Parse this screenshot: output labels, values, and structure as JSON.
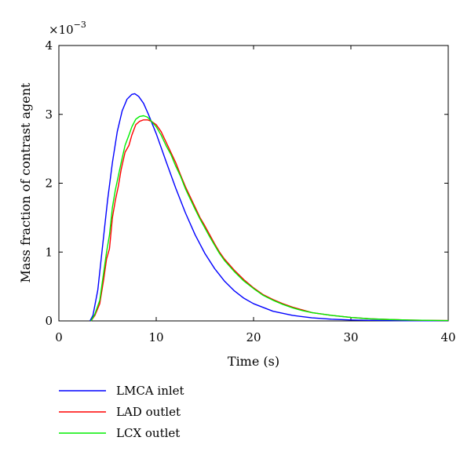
{
  "chart_data": {
    "type": "line",
    "xlabel": "Time (s)",
    "ylabel": "Mass fraction of contrast agent",
    "exponent_label": "×10",
    "exponent_power": "−3",
    "xlim": [
      0,
      40
    ],
    "ylim": [
      0,
      4
    ],
    "x_ticks": [
      0,
      10,
      20,
      30,
      40
    ],
    "y_ticks": [
      0,
      1,
      2,
      3,
      4
    ],
    "grid": false,
    "legend_position": "below",
    "series": [
      {
        "name": "LMCA inlet",
        "color": "#0000ff",
        "x": [
          3.2,
          3.5,
          4.0,
          4.5,
          5.0,
          5.5,
          6.0,
          6.5,
          7.0,
          7.5,
          7.8,
          8.2,
          8.7,
          9.2,
          10,
          11,
          12,
          13,
          14,
          15,
          16,
          17,
          18,
          19,
          20,
          22,
          24,
          26,
          28,
          30,
          32,
          34,
          36,
          38,
          40
        ],
        "y": [
          0.0,
          0.08,
          0.45,
          1.1,
          1.75,
          2.3,
          2.75,
          3.05,
          3.22,
          3.29,
          3.3,
          3.26,
          3.16,
          3.0,
          2.72,
          2.32,
          1.93,
          1.57,
          1.25,
          0.98,
          0.76,
          0.58,
          0.44,
          0.33,
          0.25,
          0.14,
          0.08,
          0.045,
          0.025,
          0.014,
          0.008,
          0.005,
          0.003,
          0.002,
          0.001
        ]
      },
      {
        "name": "LAD outlet",
        "color": "#ff0000",
        "x": [
          3.3,
          3.7,
          4.2,
          4.6,
          4.9,
          5.2,
          5.5,
          5.8,
          6.1,
          6.4,
          6.8,
          7.2,
          7.5,
          7.9,
          8.3,
          8.7,
          9.1,
          9.5,
          10,
          10.5,
          11,
          11.5,
          12,
          12.5,
          13,
          13.5,
          14,
          14.5,
          15,
          15.5,
          16,
          16.5,
          17,
          18,
          19,
          20,
          21,
          22,
          23,
          24,
          25,
          26,
          28,
          30,
          32,
          34,
          36,
          38,
          40
        ],
        "y": [
          0.0,
          0.08,
          0.25,
          0.6,
          0.9,
          1.05,
          1.5,
          1.75,
          1.95,
          2.2,
          2.45,
          2.55,
          2.7,
          2.85,
          2.9,
          2.92,
          2.92,
          2.9,
          2.85,
          2.75,
          2.6,
          2.45,
          2.3,
          2.12,
          1.95,
          1.8,
          1.65,
          1.5,
          1.38,
          1.25,
          1.12,
          1.0,
          0.9,
          0.74,
          0.6,
          0.48,
          0.38,
          0.31,
          0.25,
          0.2,
          0.16,
          0.12,
          0.08,
          0.05,
          0.03,
          0.02,
          0.012,
          0.008,
          0.005
        ]
      },
      {
        "name": "LCX outlet",
        "color": "#00ee00",
        "x": [
          3.3,
          3.7,
          4.2,
          4.6,
          4.9,
          5.2,
          5.5,
          5.8,
          6.1,
          6.4,
          6.8,
          7.2,
          7.5,
          7.9,
          8.3,
          8.7,
          9.1,
          9.5,
          10,
          10.5,
          11,
          11.5,
          12,
          12.5,
          13,
          13.5,
          14,
          14.5,
          15,
          15.5,
          16,
          16.5,
          17,
          18,
          19,
          20,
          21,
          22,
          23,
          24,
          25,
          26,
          28,
          30,
          32,
          34,
          36,
          38,
          40
        ],
        "y": [
          0.0,
          0.1,
          0.3,
          0.7,
          1.0,
          1.25,
          1.65,
          1.9,
          2.1,
          2.3,
          2.55,
          2.7,
          2.82,
          2.93,
          2.97,
          2.98,
          2.96,
          2.9,
          2.82,
          2.7,
          2.55,
          2.42,
          2.25,
          2.1,
          1.92,
          1.77,
          1.62,
          1.48,
          1.35,
          1.22,
          1.1,
          0.98,
          0.88,
          0.72,
          0.58,
          0.47,
          0.37,
          0.3,
          0.24,
          0.19,
          0.15,
          0.12,
          0.08,
          0.05,
          0.03,
          0.02,
          0.012,
          0.008,
          0.005
        ]
      }
    ]
  }
}
